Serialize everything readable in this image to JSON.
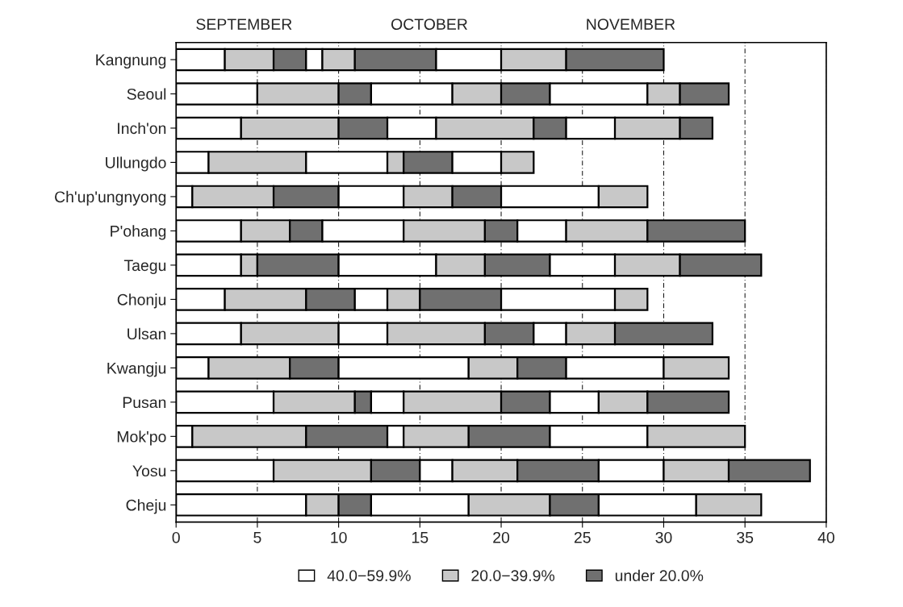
{
  "chart_data": {
    "type": "bar",
    "orientation": "horizontal",
    "stacked": true,
    "categories": [
      "Kangnung",
      "Seoul",
      "Inch'on",
      "Ullungdo",
      "Ch'up'ungnyong",
      "P'ohang",
      "Taegu",
      "Chonju",
      "Ulsan",
      "Kwangju",
      "Pusan",
      "Mok'po",
      "Yosu",
      "Cheju"
    ],
    "series": [
      {
        "name": "40.0−59.9%",
        "color": "#ffffff",
        "values": [
          3,
          5,
          4,
          2,
          1,
          4,
          4,
          3,
          4,
          2,
          6,
          1,
          6,
          8
        ]
      },
      {
        "name": "20.0−39.9%",
        "color": "#c8c8c8",
        "values": [
          3,
          5,
          6,
          6,
          5,
          3,
          1,
          5,
          6,
          5,
          5,
          7,
          6,
          2
        ]
      },
      {
        "name": "under 20.0%",
        "color": "#707070",
        "values": [
          2,
          2,
          3,
          null,
          4,
          2,
          5,
          3,
          null,
          3,
          1,
          5,
          3,
          2
        ]
      },
      {
        "color": "#ffffff",
        "values": [
          1,
          5,
          3,
          5,
          4,
          5,
          6,
          2,
          3,
          8,
          2,
          1,
          2,
          6
        ]
      },
      {
        "color": "#c8c8c8",
        "values": [
          2,
          3,
          6,
          1,
          3,
          5,
          3,
          2,
          6,
          3,
          6,
          4,
          4,
          5
        ]
      },
      {
        "color": "#707070",
        "values": [
          5,
          3,
          2,
          3,
          3,
          2,
          4,
          5,
          3,
          3,
          3,
          5,
          5,
          3
        ]
      },
      {
        "color": "#ffffff",
        "values": [
          4,
          6,
          3,
          3,
          6,
          3,
          4,
          7,
          2,
          6,
          3,
          6,
          4,
          6
        ]
      },
      {
        "color": "#c8c8c8",
        "values": [
          4,
          2,
          4,
          2,
          3,
          5,
          4,
          2,
          3,
          4,
          3,
          6,
          4,
          4
        ]
      },
      {
        "color": "#707070",
        "values": [
          6,
          3,
          2,
          null,
          null,
          6,
          5,
          null,
          6,
          null,
          5,
          null,
          5,
          null
        ]
      }
    ],
    "xlim": [
      0,
      40
    ],
    "xticks": [
      0,
      5,
      10,
      15,
      20,
      25,
      30,
      35,
      40
    ],
    "grid": "x",
    "legend": "bottom",
    "annotations": [
      "SEPTEMBER",
      "OCTOBER",
      "NOVEMBER"
    ]
  }
}
